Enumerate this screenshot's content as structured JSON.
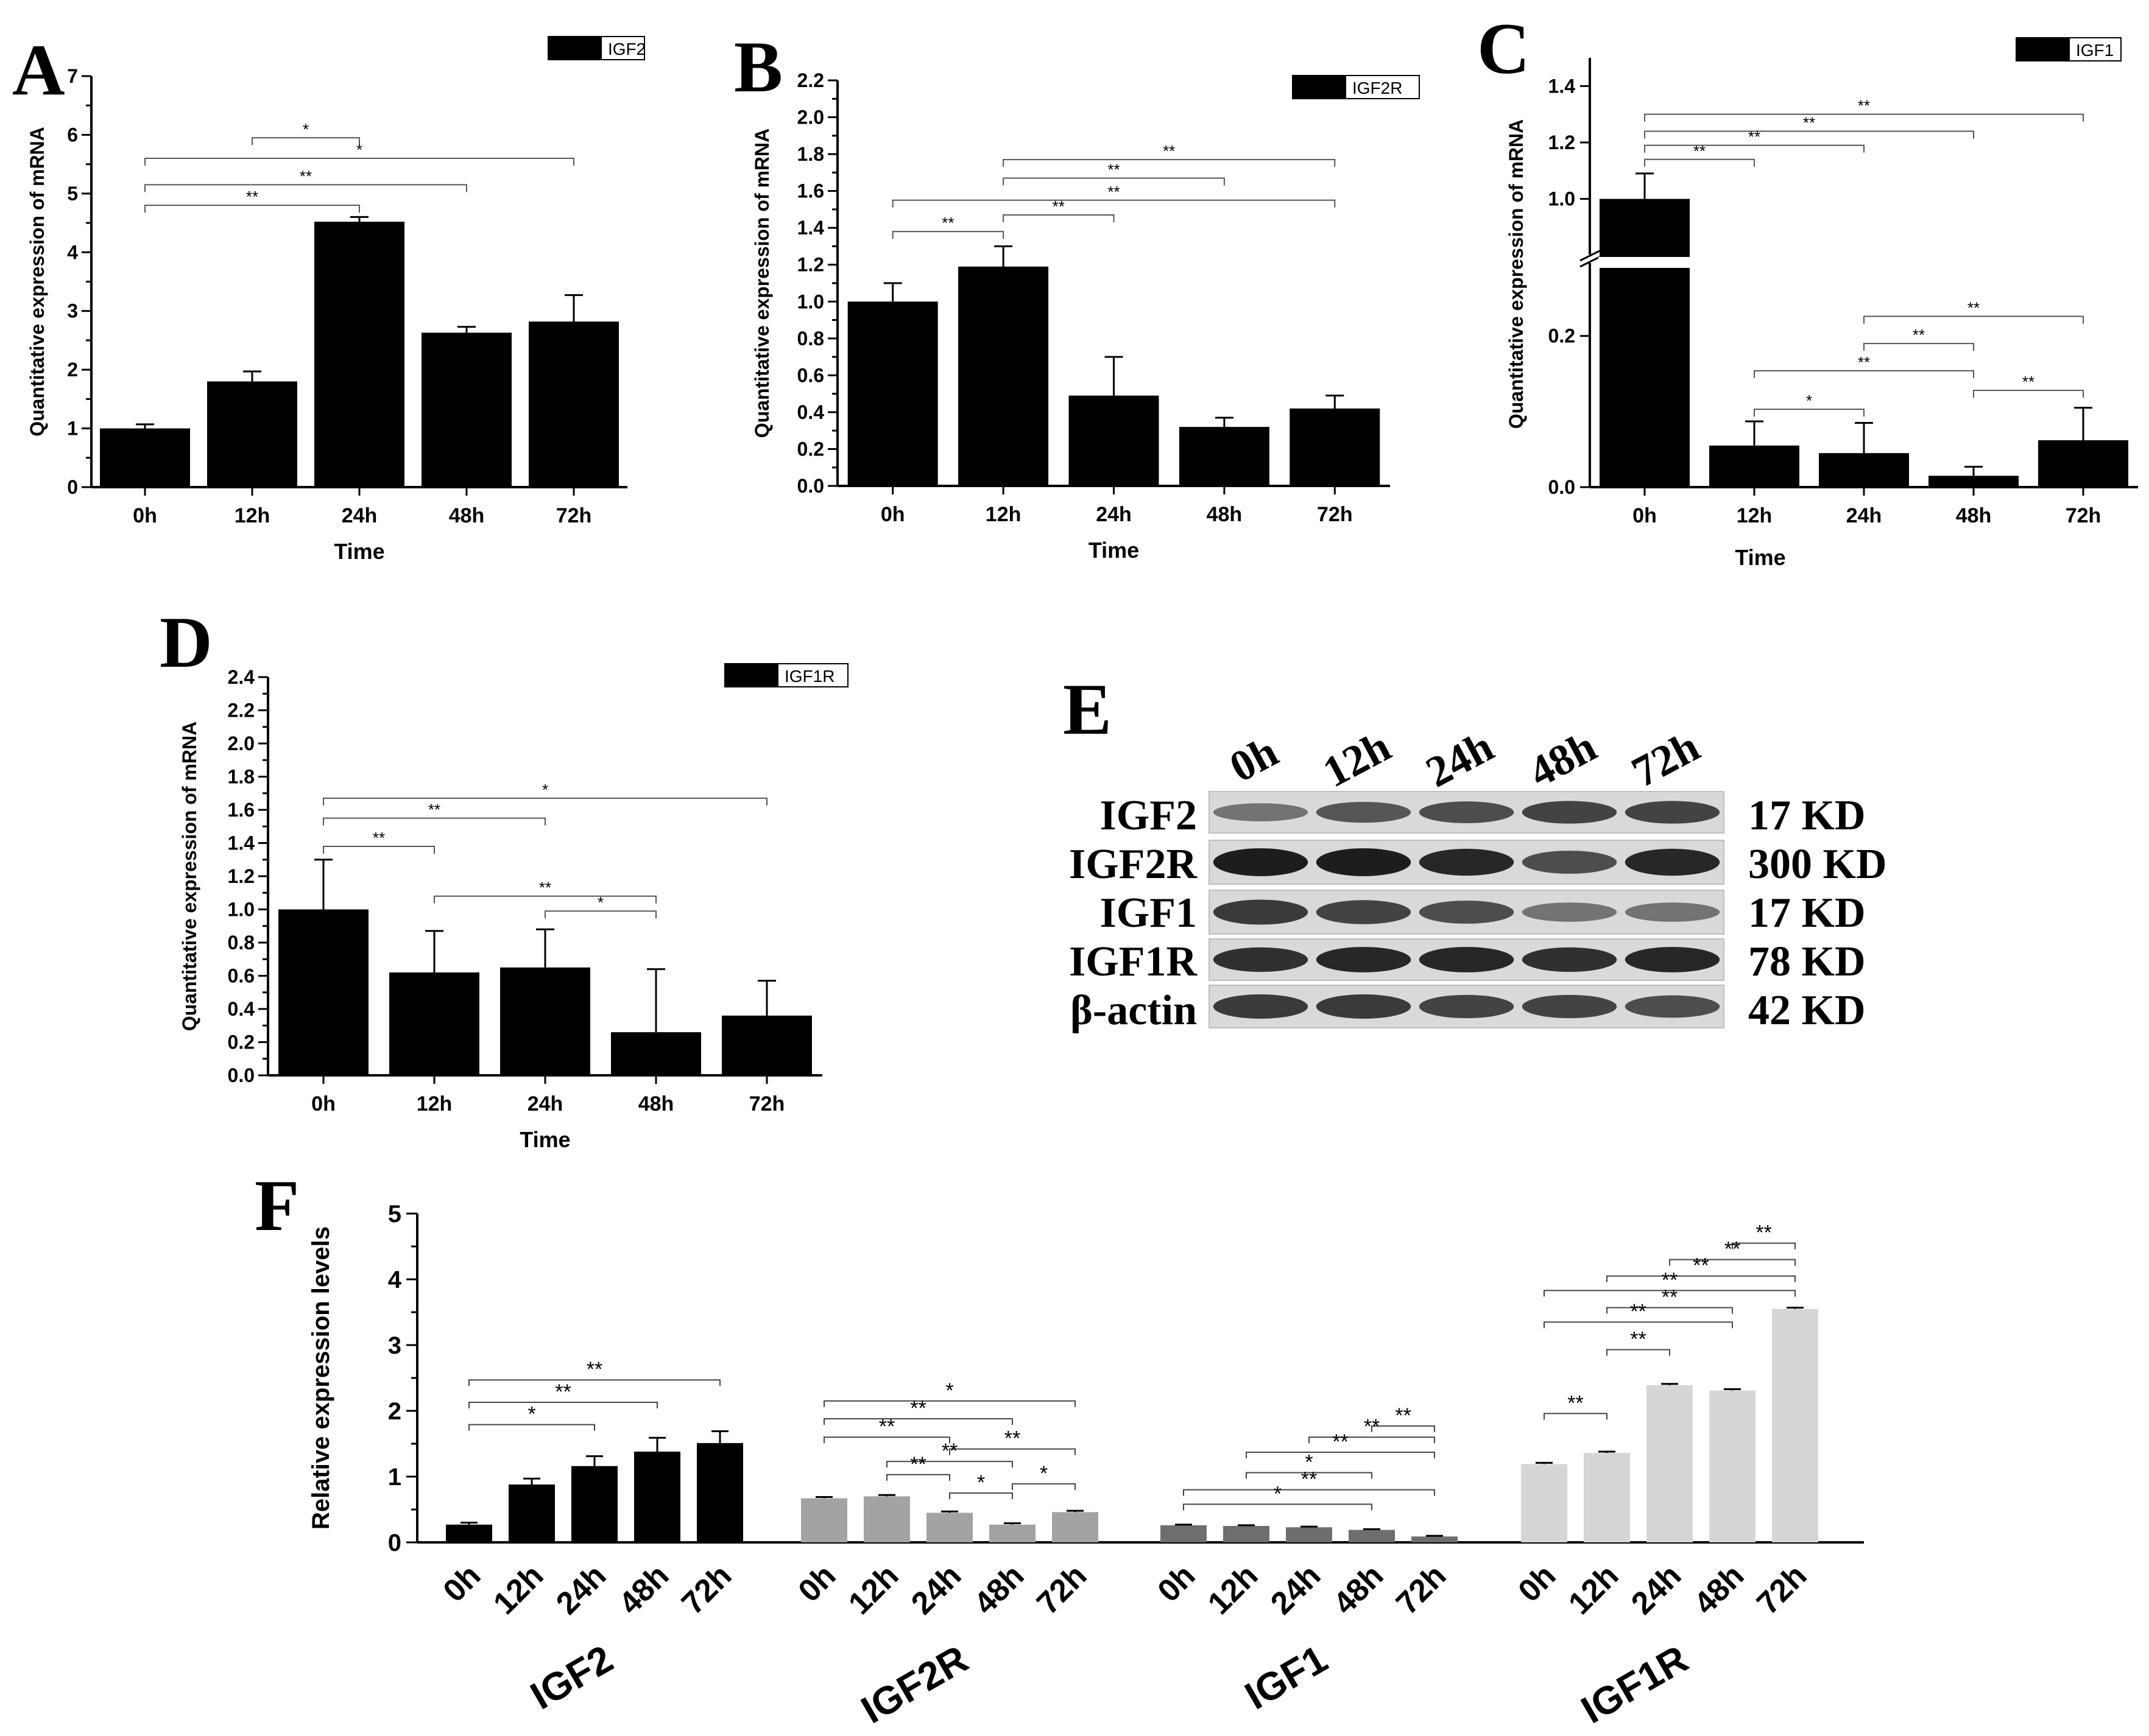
{
  "chart_data": [
    {
      "panel": "A",
      "type": "bar",
      "legend": "IGF2",
      "categories": [
        "0h",
        "12h",
        "24h",
        "48h",
        "72h"
      ],
      "values": [
        1.0,
        1.8,
        4.52,
        2.63,
        2.82
      ],
      "errors": [
        0.07,
        0.17,
        0.08,
        0.1,
        0.45
      ],
      "ylabel": "Quantitative expression of mRNA",
      "xlabel": "Time",
      "ylim": [
        0,
        7
      ],
      "yticks": [
        0,
        1,
        2,
        3,
        4,
        5,
        6,
        7
      ],
      "tick_decimals": 0,
      "significance": [
        {
          "from": 1,
          "to": 2,
          "label": "*",
          "y": 5.95
        },
        {
          "from": 0,
          "to": 4,
          "label": "*",
          "y": 5.6
        },
        {
          "from": 0,
          "to": 3,
          "label": "**",
          "y": 5.15
        },
        {
          "from": 0,
          "to": 2,
          "label": "**",
          "y": 4.8
        }
      ]
    },
    {
      "panel": "B",
      "type": "bar",
      "legend": "IGF2R",
      "categories": [
        "0h",
        "12h",
        "24h",
        "48h",
        "72h"
      ],
      "values": [
        1.0,
        1.19,
        0.49,
        0.32,
        0.42
      ],
      "errors": [
        0.1,
        0.11,
        0.21,
        0.05,
        0.07
      ],
      "ylabel": "Quantitative expression of mRNA",
      "xlabel": "Time",
      "ylim": [
        0,
        2.2
      ],
      "yticks": [
        0,
        0.2,
        0.4,
        0.6,
        0.8,
        1.0,
        1.2,
        1.4,
        1.6,
        1.8,
        2.0,
        2.2
      ],
      "tick_decimals": 1,
      "significance": [
        {
          "from": 1,
          "to": 4,
          "label": "**",
          "y": 1.77
        },
        {
          "from": 1,
          "to": 3,
          "label": "**",
          "y": 1.67
        },
        {
          "from": 0,
          "to": 4,
          "label": "**",
          "y": 1.55
        },
        {
          "from": 1,
          "to": 2,
          "label": "**",
          "y": 1.47
        },
        {
          "from": 0,
          "to": 1,
          "label": "**",
          "y": 1.38
        }
      ]
    },
    {
      "panel": "C",
      "type": "bar",
      "legend": "IGF1",
      "broken_axis": true,
      "categories": [
        "0h",
        "12h",
        "24h",
        "48h",
        "72h"
      ],
      "values": [
        1.0,
        0.055,
        0.045,
        0.015,
        0.062
      ],
      "errors": [
        0.09,
        0.032,
        0.04,
        0.012,
        0.043
      ],
      "ylabel": "Quantitative expression of mRNA",
      "xlabel": "Time",
      "ylim_lower": [
        0,
        0.29
      ],
      "ylim_upper": [
        0.82,
        1.5
      ],
      "yticks_lower": [
        0.0,
        0.2
      ],
      "yticks_upper": [
        1.0,
        1.2,
        1.4
      ],
      "tick_decimals": 1,
      "significance": [
        {
          "from": 0,
          "to": 4,
          "label": "**",
          "y": 1.3
        },
        {
          "from": 0,
          "to": 3,
          "label": "**",
          "y": 1.24
        },
        {
          "from": 0,
          "to": 2,
          "label": "**",
          "y": 1.19
        },
        {
          "from": 0,
          "to": 1,
          "label": "**",
          "y": 1.14
        },
        {
          "from": 2,
          "to": 4,
          "label": "**",
          "y": 0.226
        },
        {
          "from": 2,
          "to": 3,
          "label": "**",
          "y": 0.19
        },
        {
          "from": 1,
          "to": 3,
          "label": "**",
          "y": 0.154
        },
        {
          "from": 3,
          "to": 4,
          "label": "**",
          "y": 0.128
        },
        {
          "from": 1,
          "to": 2,
          "label": "*",
          "y": 0.103
        }
      ]
    },
    {
      "panel": "D",
      "type": "bar",
      "legend": "IGF1R",
      "categories": [
        "0h",
        "12h",
        "24h",
        "48h",
        "72h"
      ],
      "values": [
        1.0,
        0.62,
        0.65,
        0.26,
        0.36
      ],
      "errors": [
        0.3,
        0.25,
        0.23,
        0.38,
        0.21
      ],
      "ylabel": "Quantitative expression of mRNA",
      "xlabel": "Time",
      "ylim": [
        0,
        2.4
      ],
      "yticks": [
        0,
        0.2,
        0.4,
        0.6,
        0.8,
        1.0,
        1.2,
        1.4,
        1.6,
        1.8,
        2.0,
        2.2,
        2.4
      ],
      "tick_decimals": 1,
      "significance": [
        {
          "from": 0,
          "to": 4,
          "label": "*",
          "y": 1.67
        },
        {
          "from": 0,
          "to": 2,
          "label": "**",
          "y": 1.55
        },
        {
          "from": 0,
          "to": 1,
          "label": "**",
          "y": 1.38
        },
        {
          "from": 1,
          "to": 3,
          "label": "**",
          "y": 1.08
        },
        {
          "from": 2,
          "to": 3,
          "label": "*",
          "y": 0.99
        }
      ]
    },
    {
      "panel": "F",
      "type": "bar",
      "ylabel": "Relative expression levels",
      "ylim": [
        0,
        5
      ],
      "yticks": [
        0,
        1,
        2,
        3,
        4,
        5
      ],
      "tick_decimals": 0,
      "groups": [
        {
          "name": "IGF2",
          "color": "#000000",
          "categories": [
            "0h",
            "12h",
            "24h",
            "48h",
            "72h"
          ],
          "values": [
            0.27,
            0.88,
            1.16,
            1.38,
            1.51
          ],
          "errors": [
            0.03,
            0.09,
            0.15,
            0.21,
            0.18
          ],
          "significance": [
            {
              "from": 0,
              "to": 4,
              "label": "**",
              "y": 2.47
            },
            {
              "from": 0,
              "to": 3,
              "label": "**",
              "y": 2.13
            },
            {
              "from": 0,
              "to": 2,
              "label": "*",
              "y": 1.79
            }
          ]
        },
        {
          "name": "IGF2R",
          "color": "#a3a3a3",
          "categories": [
            "0h",
            "12h",
            "24h",
            "48h",
            "72h"
          ],
          "values": [
            0.67,
            0.7,
            0.45,
            0.27,
            0.46
          ],
          "errors": [
            0.02,
            0.02,
            0.02,
            0.02,
            0.02
          ],
          "significance": [
            {
              "from": 0,
              "to": 4,
              "label": "*",
              "y": 2.15
            },
            {
              "from": 0,
              "to": 3,
              "label": "**",
              "y": 1.88
            },
            {
              "from": 0,
              "to": 2,
              "label": "**",
              "y": 1.6
            },
            {
              "from": 2,
              "to": 4,
              "label": "**",
              "y": 1.42
            },
            {
              "from": 1,
              "to": 3,
              "label": "**",
              "y": 1.23
            },
            {
              "from": 1,
              "to": 2,
              "label": "**",
              "y": 1.03
            },
            {
              "from": 3,
              "to": 4,
              "label": "*",
              "y": 0.89
            },
            {
              "from": 2,
              "to": 3,
              "label": "*",
              "y": 0.75
            }
          ]
        },
        {
          "name": "IGF1",
          "color": "#6e6e6e",
          "categories": [
            "0h",
            "12h",
            "24h",
            "48h",
            "72h"
          ],
          "values": [
            0.26,
            0.25,
            0.23,
            0.19,
            0.09
          ],
          "errors": [
            0.01,
            0.01,
            0.01,
            0.01,
            0.01
          ],
          "significance": [
            {
              "from": 3,
              "to": 4,
              "label": "**",
              "y": 1.77
            },
            {
              "from": 2,
              "to": 4,
              "label": "**",
              "y": 1.6
            },
            {
              "from": 1,
              "to": 4,
              "label": "**",
              "y": 1.37
            },
            {
              "from": 1,
              "to": 3,
              "label": "*",
              "y": 1.06
            },
            {
              "from": 0,
              "to": 4,
              "label": "**",
              "y": 0.8
            },
            {
              "from": 0,
              "to": 3,
              "label": "*",
              "y": 0.58
            }
          ]
        },
        {
          "name": "IGF1R",
          "color": "#d6d6d6",
          "categories": [
            "0h",
            "12h",
            "24h",
            "48h",
            "72h"
          ],
          "values": [
            1.19,
            1.36,
            2.39,
            2.31,
            3.55
          ],
          "errors": [
            0.02,
            0.02,
            0.02,
            0.02,
            0.02
          ],
          "significance": [
            {
              "from": 3,
              "to": 4,
              "label": "**",
              "y": 4.55
            },
            {
              "from": 2,
              "to": 4,
              "label": "**",
              "y": 4.3
            },
            {
              "from": 1,
              "to": 4,
              "label": "**",
              "y": 4.05
            },
            {
              "from": 0,
              "to": 4,
              "label": "**",
              "y": 3.83
            },
            {
              "from": 1,
              "to": 3,
              "label": "**",
              "y": 3.57
            },
            {
              "from": 0,
              "to": 3,
              "label": "**",
              "y": 3.35
            },
            {
              "from": 1,
              "to": 2,
              "label": "**",
              "y": 2.93
            },
            {
              "from": 0,
              "to": 1,
              "label": "**",
              "y": 1.96
            }
          ]
        }
      ]
    }
  ],
  "panel_letters": {
    "a": "A",
    "b": "B",
    "c": "C",
    "d": "D",
    "e": "E",
    "f": "F"
  },
  "blot": {
    "time_labels": [
      "0h",
      "12h",
      "24h",
      "48h",
      "72h"
    ],
    "rows": [
      {
        "protein": "IGF2",
        "size": "17 KD",
        "intensity": [
          0.45,
          0.6,
          0.65,
          0.7,
          0.7
        ]
      },
      {
        "protein": "IGF2R",
        "size": "300 KD",
        "intensity": [
          0.9,
          0.9,
          0.85,
          0.65,
          0.85
        ]
      },
      {
        "protein": "IGF1",
        "size": "17 KD",
        "intensity": [
          0.75,
          0.7,
          0.65,
          0.45,
          0.45
        ]
      },
      {
        "protein": "IGF1R",
        "size": "78 KD",
        "intensity": [
          0.8,
          0.85,
          0.85,
          0.8,
          0.85
        ]
      },
      {
        "protein": "β-actin",
        "size": "42 KD",
        "intensity": [
          0.75,
          0.75,
          0.7,
          0.7,
          0.65
        ]
      }
    ]
  }
}
